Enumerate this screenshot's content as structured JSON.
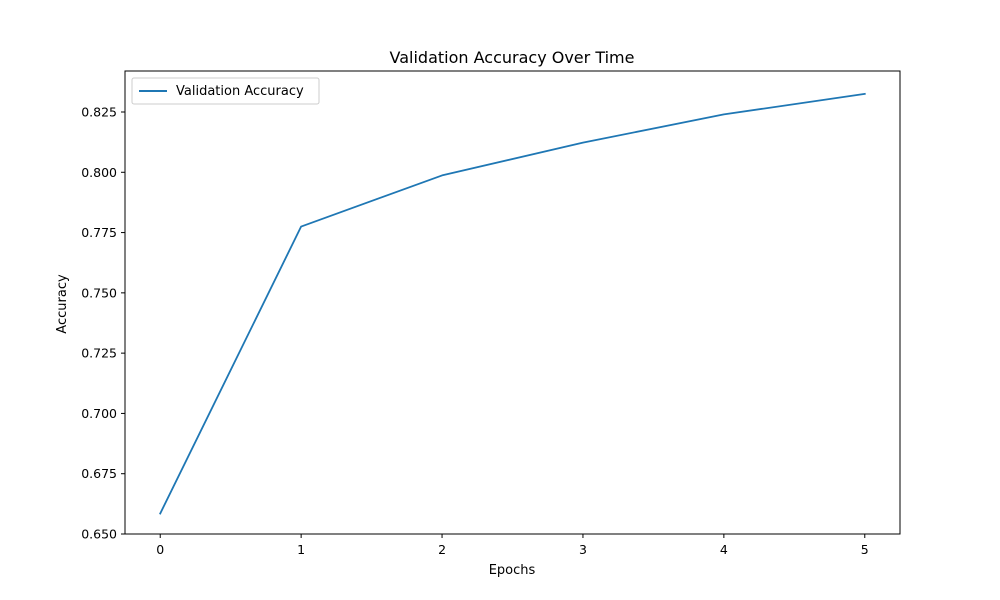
{
  "chart_data": {
    "type": "line",
    "title": "Validation Accuracy Over Time",
    "xlabel": "Epochs",
    "ylabel": "Accuracy",
    "x": [
      0,
      1,
      2,
      3,
      4,
      5
    ],
    "xticks": [
      "0",
      "1",
      "2",
      "3",
      "4",
      "5"
    ],
    "xlim": [
      -0.25,
      5.25
    ],
    "yticks": [
      "0.650",
      "0.675",
      "0.700",
      "0.725",
      "0.750",
      "0.775",
      "0.800",
      "0.825"
    ],
    "ylim": [
      0.65,
      0.842
    ],
    "grid": false,
    "legend_position": "top-left",
    "series": [
      {
        "name": "Validation Accuracy",
        "color": "#1f77b4",
        "values": [
          0.6585,
          0.7775,
          0.7987,
          0.8123,
          0.824,
          0.8325
        ]
      }
    ]
  }
}
